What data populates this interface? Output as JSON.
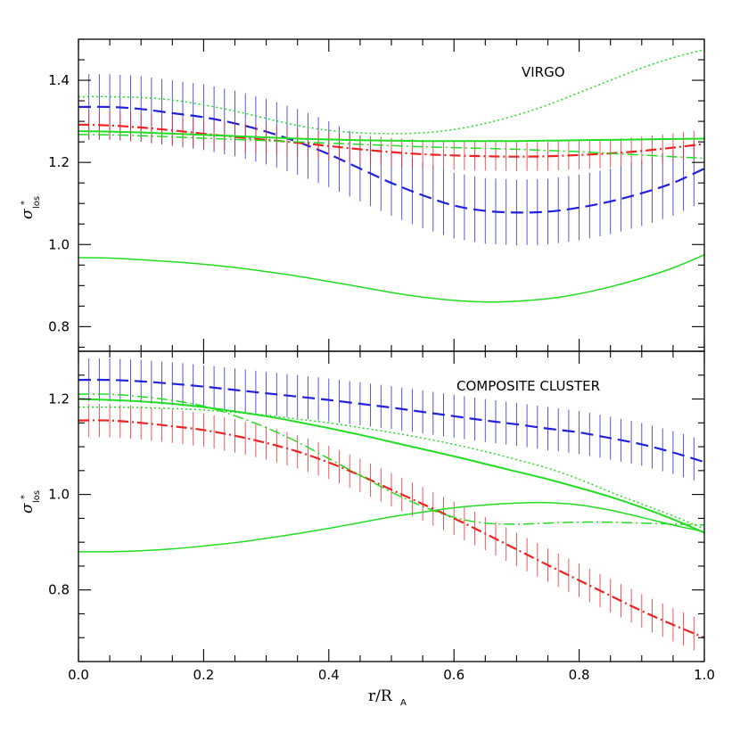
{
  "chart_data": [
    {
      "type": "line",
      "panel_label": "VIRGO",
      "xlabel_main": "r/R",
      "xlabel_sub": "A",
      "ylabel_main": "σ",
      "ylabel_sup": "*",
      "ylabel_sub": "los",
      "xlim": [
        0.0,
        1.0
      ],
      "ylim": [
        0.74,
        1.5
      ],
      "xticks": [
        "0.0",
        "0.2",
        "0.4",
        "0.6",
        "0.8",
        "1.0"
      ],
      "yticks": [
        "0.8",
        "1.0",
        "1.2",
        "1.4"
      ],
      "ytick_values": [
        0.8,
        1.0,
        1.2,
        1.4
      ],
      "grid": false,
      "x": [
        0.0,
        0.05,
        0.1,
        0.15,
        0.2,
        0.25,
        0.3,
        0.35,
        0.4,
        0.45,
        0.5,
        0.55,
        0.6,
        0.65,
        0.7,
        0.75,
        0.8,
        0.85,
        0.9,
        0.95,
        1.0
      ],
      "series": [
        {
          "color": "#2222dd",
          "style": "dashed",
          "width": 2.2,
          "errorbars": true,
          "errsize": 0.08,
          "values": [
            1.335,
            1.335,
            1.33,
            1.32,
            1.31,
            1.295,
            1.275,
            1.25,
            1.22,
            1.185,
            1.15,
            1.12,
            1.095,
            1.082,
            1.078,
            1.08,
            1.09,
            1.105,
            1.125,
            1.15,
            1.185
          ]
        },
        {
          "color": "#ee2222",
          "style": "dashdot",
          "width": 2.2,
          "errorbars": true,
          "errsize": 0.035,
          "values": [
            1.292,
            1.29,
            1.285,
            1.278,
            1.27,
            1.262,
            1.255,
            1.248,
            1.24,
            1.232,
            1.225,
            1.22,
            1.217,
            1.215,
            1.214,
            1.215,
            1.218,
            1.222,
            1.228,
            1.236,
            1.245
          ]
        },
        {
          "color": "#22dd22",
          "style": "dotted",
          "width": 1.5,
          "errorbars": false,
          "values": [
            1.36,
            1.36,
            1.358,
            1.352,
            1.34,
            1.325,
            1.307,
            1.29,
            1.278,
            1.272,
            1.27,
            1.272,
            1.28,
            1.295,
            1.315,
            1.34,
            1.37,
            1.4,
            1.43,
            1.455,
            1.475
          ]
        },
        {
          "color": "#22dd22",
          "style": "solid",
          "width": 2.0,
          "errorbars": false,
          "values": [
            1.276,
            1.275,
            1.273,
            1.27,
            1.267,
            1.264,
            1.261,
            1.258,
            1.256,
            1.254,
            1.253,
            1.252,
            1.252,
            1.252,
            1.252,
            1.253,
            1.254,
            1.255,
            1.256,
            1.257,
            1.258
          ]
        },
        {
          "color": "#22dd22",
          "style": "dashdot",
          "width": 1.5,
          "errorbars": false,
          "values": [
            1.268,
            1.267,
            1.265,
            1.262,
            1.259,
            1.256,
            1.253,
            1.25,
            1.247,
            1.244,
            1.241,
            1.238,
            1.236,
            1.234,
            1.232,
            1.229,
            1.226,
            1.222,
            1.218,
            1.214,
            1.21
          ]
        },
        {
          "color": "#22dd22",
          "style": "solid",
          "width": 1.5,
          "errorbars": false,
          "values": [
            0.968,
            0.967,
            0.963,
            0.958,
            0.952,
            0.944,
            0.934,
            0.923,
            0.91,
            0.897,
            0.883,
            0.872,
            0.864,
            0.86,
            0.862,
            0.868,
            0.88,
            0.897,
            0.918,
            0.943,
            0.975
          ]
        }
      ]
    },
    {
      "type": "line",
      "panel_label": "COMPOSITE CLUSTER",
      "xlim": [
        0.0,
        1.0
      ],
      "ylim": [
        0.65,
        1.3
      ],
      "xticks": [
        "0.0",
        "0.2",
        "0.4",
        "0.6",
        "0.8",
        "1.0"
      ],
      "yticks": [
        "0.8",
        "1.0",
        "1.2"
      ],
      "ytick_values": [
        0.8,
        1.0,
        1.2
      ],
      "grid": false,
      "x": [
        0.0,
        0.05,
        0.1,
        0.15,
        0.2,
        0.25,
        0.3,
        0.35,
        0.4,
        0.45,
        0.5,
        0.55,
        0.6,
        0.65,
        0.7,
        0.75,
        0.8,
        0.85,
        0.9,
        0.95,
        1.0
      ],
      "series": [
        {
          "color": "#2222dd",
          "style": "dashed",
          "width": 2.2,
          "errorbars": true,
          "errsize": 0.045,
          "values": [
            1.24,
            1.24,
            1.237,
            1.232,
            1.226,
            1.219,
            1.212,
            1.205,
            1.198,
            1.19,
            1.182,
            1.173,
            1.164,
            1.155,
            1.147,
            1.138,
            1.13,
            1.118,
            1.105,
            1.088,
            1.068
          ]
        },
        {
          "color": "#ee2222",
          "style": "dashdot",
          "width": 2.2,
          "errorbars": true,
          "errsize": 0.035,
          "values": [
            1.155,
            1.155,
            1.15,
            1.143,
            1.135,
            1.123,
            1.108,
            1.09,
            1.067,
            1.04,
            1.01,
            0.98,
            0.95,
            0.918,
            0.885,
            0.852,
            0.82,
            0.788,
            0.756,
            0.727,
            0.7
          ]
        },
        {
          "color": "#22dd22",
          "style": "dotted",
          "width": 1.5,
          "errorbars": false,
          "values": [
            1.183,
            1.183,
            1.182,
            1.18,
            1.177,
            1.172,
            1.166,
            1.158,
            1.15,
            1.14,
            1.13,
            1.118,
            1.105,
            1.09,
            1.073,
            1.055,
            1.032,
            1.005,
            0.98,
            0.955,
            0.928
          ]
        },
        {
          "color": "#22dd22",
          "style": "solid",
          "width": 2.0,
          "errorbars": false,
          "values": [
            1.2,
            1.198,
            1.195,
            1.19,
            1.183,
            1.174,
            1.164,
            1.152,
            1.139,
            1.125,
            1.11,
            1.095,
            1.08,
            1.064,
            1.048,
            1.032,
            1.014,
            0.995,
            0.973,
            0.948,
            0.92
          ]
        },
        {
          "color": "#22dd22",
          "style": "dashdot",
          "width": 1.5,
          "errorbars": false,
          "values": [
            1.21,
            1.21,
            1.205,
            1.197,
            1.185,
            1.165,
            1.14,
            1.11,
            1.075,
            1.04,
            1.005,
            0.975,
            0.952,
            0.94,
            0.938,
            0.94,
            0.942,
            0.942,
            0.94,
            0.938,
            0.936
          ]
        },
        {
          "color": "#22dd22",
          "style": "solid",
          "width": 1.5,
          "errorbars": false,
          "values": [
            0.88,
            0.88,
            0.882,
            0.886,
            0.892,
            0.899,
            0.908,
            0.918,
            0.929,
            0.941,
            0.953,
            0.963,
            0.972,
            0.978,
            0.982,
            0.983,
            0.978,
            0.967,
            0.952,
            0.936,
            0.922
          ]
        }
      ]
    }
  ]
}
